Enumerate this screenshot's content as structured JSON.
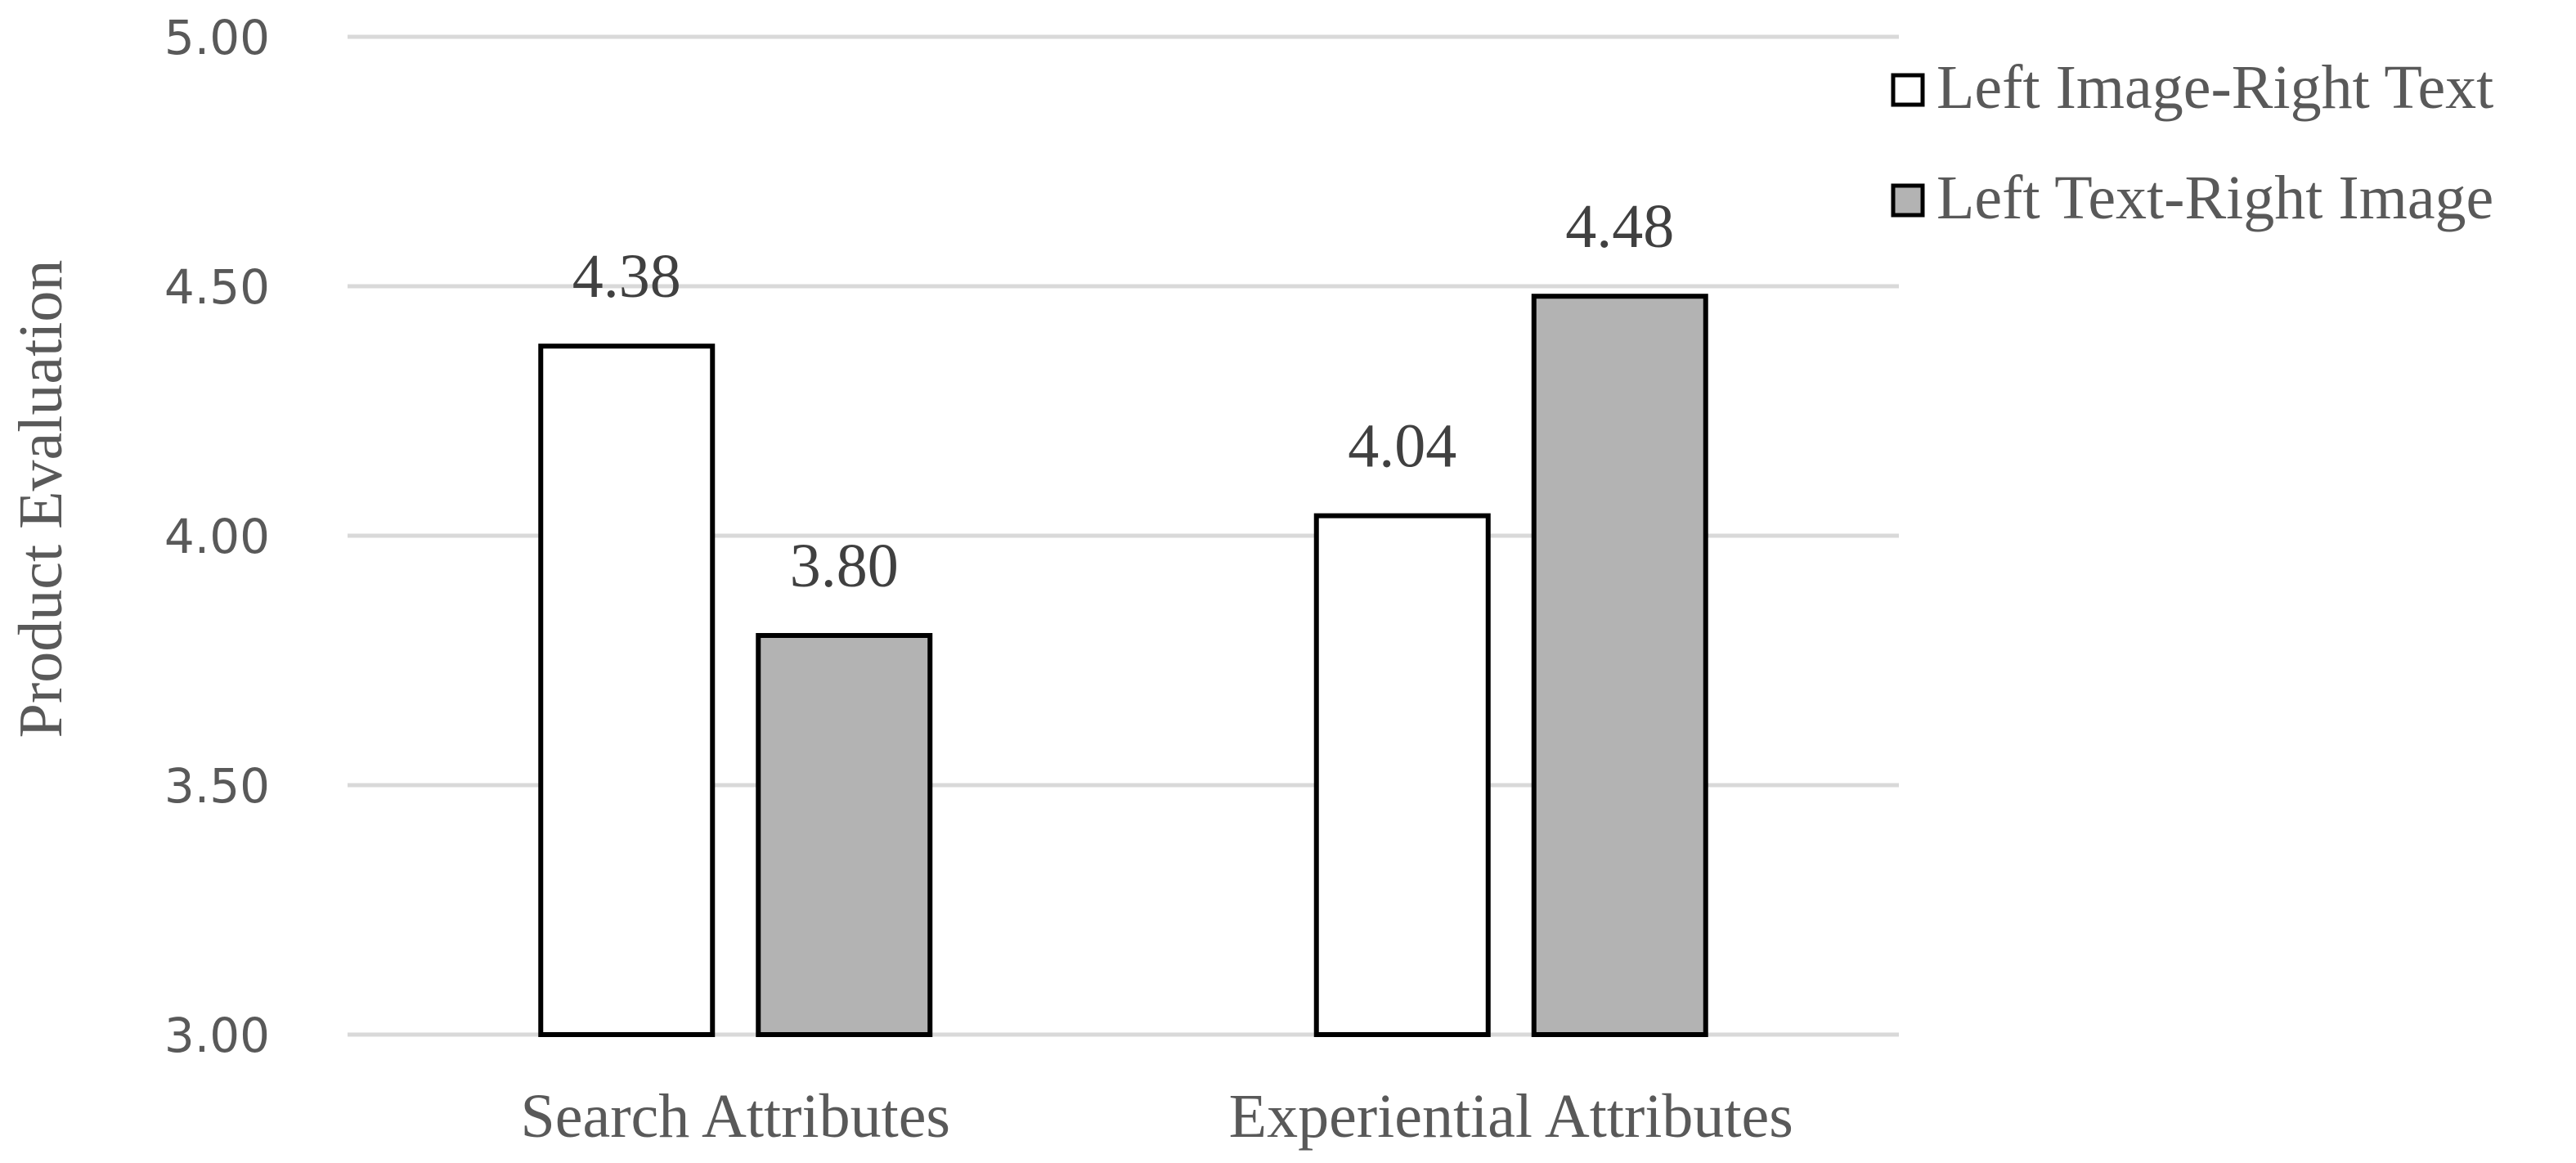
{
  "chart_data": {
    "type": "bar",
    "categories": [
      "Search Attributes",
      "Experiential Attributes"
    ],
    "series": [
      {
        "name": "Left Image-Right Text",
        "values": [
          4.38,
          4.04
        ],
        "color": "#ffffff",
        "labels": [
          "4.38",
          "4.04"
        ]
      },
      {
        "name": "Left Text-Right Image",
        "values": [
          3.8,
          4.48
        ],
        "color": "#b3b3b3",
        "labels": [
          "3.80",
          "4.48"
        ]
      }
    ],
    "ylabel": "Product Evaluation",
    "ylim": [
      3.0,
      5.0
    ],
    "yticks": [
      3.0,
      3.5,
      4.0,
      4.5,
      5.0
    ],
    "ytick_labels": [
      "3.00",
      "3.50",
      "4.00",
      "4.50",
      "5.00"
    ],
    "grid": true,
    "legend_position": "top-right",
    "bar_outline_color": "#000000",
    "gridline_color": "#d9d9d9",
    "text_color": "#595959"
  }
}
